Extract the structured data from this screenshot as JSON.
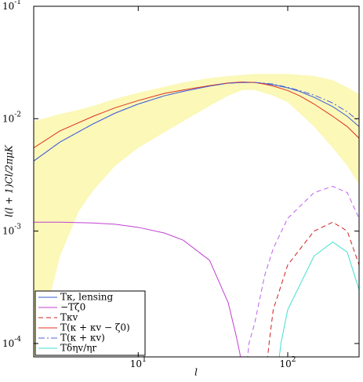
{
  "chart_data": {
    "type": "line",
    "xlabel": "l",
    "ylabel": "l(l + 1)Cl/2πμK",
    "log_x": true,
    "log_y": true,
    "xlim": [
      2,
      300
    ],
    "ylim": [
      7.6e-05,
      0.1
    ],
    "xticks": [
      {
        "value": 10,
        "label": "10^1"
      },
      {
        "value": 100,
        "label": "10^2"
      }
    ],
    "yticks": [
      {
        "value": 0.0001,
        "label": "10^-4"
      },
      {
        "value": 0.001,
        "label": "10^-3"
      },
      {
        "value": 0.01,
        "label": "10^-2"
      },
      {
        "value": 0.1,
        "label": "10^-1"
      }
    ],
    "legend": "lower left",
    "band": {
      "color": "#fbf8b8",
      "x": [
        2,
        3,
        4,
        5,
        7,
        10,
        20,
        30,
        40,
        50,
        60,
        80,
        100,
        150,
        200,
        250,
        300
      ],
      "upper": [
        0.0095,
        0.011,
        0.012,
        0.013,
        0.015,
        0.017,
        0.021,
        0.023,
        0.024,
        0.0245,
        0.025,
        0.025,
        0.025,
        0.024,
        0.022,
        0.019,
        0.0165
      ],
      "lower": [
        7e-05,
        0.0006,
        0.0015,
        0.0023,
        0.0038,
        0.0055,
        0.0095,
        0.013,
        0.016,
        0.018,
        0.018,
        0.016,
        0.014,
        0.0085,
        0.0055,
        0.0038,
        0.0026
      ]
    },
    "series": [
      {
        "name": "Tκ, lensing",
        "color": "#3a5fd0",
        "dash": "solid",
        "x": [
          2,
          3,
          5,
          7,
          10,
          15,
          20,
          30,
          40,
          50,
          60,
          70,
          80,
          100,
          120,
          150,
          200,
          250,
          300
        ],
        "values": [
          0.0042,
          0.0062,
          0.009,
          0.0112,
          0.0135,
          0.016,
          0.0175,
          0.0195,
          0.0207,
          0.021,
          0.021,
          0.0205,
          0.02,
          0.0188,
          0.0175,
          0.0155,
          0.0128,
          0.0105,
          0.0085
        ]
      },
      {
        "name": "−Tζ0",
        "color": "#c040d0",
        "dash": "solid",
        "x": [
          2,
          3,
          5,
          7,
          10,
          15,
          20,
          30,
          40,
          45,
          48,
          49.5
        ],
        "values": [
          0.0012,
          0.0012,
          0.00118,
          0.00115,
          0.00108,
          0.00096,
          0.00083,
          0.00055,
          0.00023,
          0.00012,
          8e-05,
          5e-05
        ]
      },
      {
        "name": "Tκv",
        "color": "#d02020",
        "dash": "dashed",
        "x": [
          72,
          75,
          80,
          100,
          150,
          200,
          250,
          300
        ],
        "values": [
          6e-05,
          0.0001,
          0.0002,
          0.0005,
          0.001,
          0.0012,
          0.001,
          0.0005
        ]
      },
      {
        "name": "T(κ + κv − ζ0)",
        "color": "#e03020",
        "dash": "solid",
        "x": [
          2,
          3,
          5,
          7,
          10,
          15,
          20,
          30,
          40,
          50,
          60,
          70,
          80,
          100,
          120,
          150,
          200,
          250,
          300
        ],
        "values": [
          0.0055,
          0.0078,
          0.0105,
          0.0125,
          0.0145,
          0.0168,
          0.018,
          0.0197,
          0.0208,
          0.0212,
          0.021,
          0.0203,
          0.0195,
          0.0178,
          0.016,
          0.0135,
          0.0105,
          0.0085,
          0.0067
        ]
      },
      {
        "name": "T(κ + κv)",
        "color": "#5060e0",
        "dash": "dashdot",
        "x": [
          2,
          3,
          5,
          7,
          10,
          15,
          20,
          30,
          40,
          50,
          60,
          70,
          80,
          100,
          120,
          150,
          200,
          250,
          300
        ],
        "values": [
          0.0042,
          0.0062,
          0.009,
          0.0112,
          0.0135,
          0.016,
          0.0175,
          0.0195,
          0.0207,
          0.021,
          0.021,
          0.0207,
          0.0203,
          0.019,
          0.0178,
          0.0162,
          0.0138,
          0.0115,
          0.0095
        ]
      },
      {
        "name": "Tδηv/ηr",
        "color": "#40e0d0",
        "dash": "solid",
        "x": [
          86,
          90,
          100,
          150,
          200,
          250,
          300
        ],
        "values": [
          6e-05,
          0.0001,
          0.0002,
          0.0006,
          0.0008,
          0.00065,
          0.0003
        ]
      },
      {
        "color": "#c060f0",
        "dash": "dashed",
        "x": [
          53,
          55,
          60,
          70,
          80,
          100,
          150,
          200,
          250,
          300
        ],
        "values": [
          6e-05,
          0.0001,
          0.00015,
          0.0004,
          0.0007,
          0.0013,
          0.0022,
          0.0025,
          0.0022,
          0.0013
        ]
      }
    ]
  }
}
